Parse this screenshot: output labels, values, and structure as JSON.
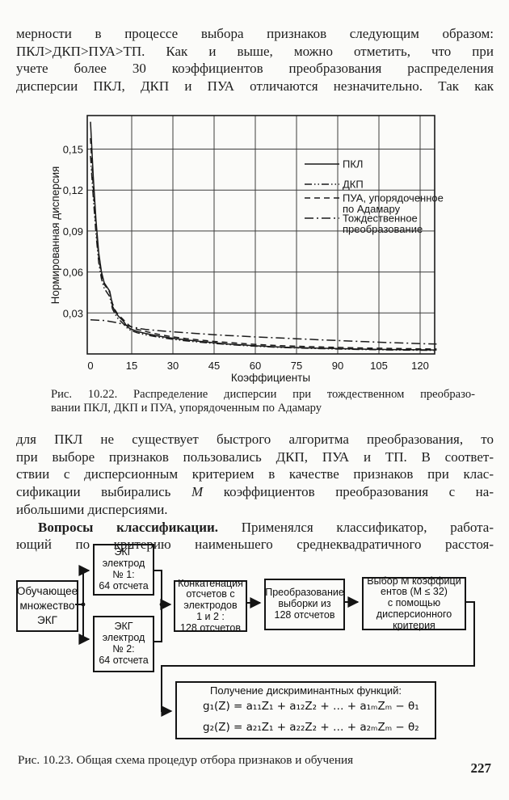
{
  "page": {
    "paragraph_top": {
      "line1": "мерности в процессе выбора признаков следующим образом:",
      "line2": "ПКЛ>ДКП>ПУА>ТП. Как и выше, можно отметить, что при",
      "line3": "учете более 30 коэффициентов преобразования распределения",
      "line4": "дисперсии ПКЛ, ДКП и ПУА отличаются незначительно. Так как"
    },
    "figure_22_caption": {
      "line1": "Рис. 10.22. Распределение дисперсии при тождественном преобразо-",
      "line2": "вании ПКЛ, ДКП и ПУА, упорядоченным по Адамару"
    },
    "paragraph_mid": {
      "line1": "для ПКЛ не существует быстрого алгоритма преобразования, то",
      "line2": "при выборе признаков пользовались ДКП, ПУА и ТП. В соответ-",
      "line3": "ствии с дисперсионным критерием в качестве признаков при клас-",
      "line4_a": "сификации выбирались",
      "line4_m": "М",
      "line4_b": "коэффициентов преобразования с на-",
      "line5": "ибольшими дисперсиями.",
      "line6_bold": "Вопросы классификации.",
      "line6_rest": "Применялся классификатор, работа-",
      "line7": "ющий по критерию наименьшего среднеквадратичного расстоя-"
    },
    "figure_23_caption": "Рис. 10.23. Общая схема процедур отбора признаков и обучения",
    "page_number": "227"
  },
  "chart_data": {
    "type": "line",
    "title": "",
    "xlabel": "Коэффициенты",
    "ylabel": "Нормированная дисперсия",
    "xlim": [
      0,
      126
    ],
    "ylim": [
      0,
      0.1745
    ],
    "xticks": [
      0,
      15,
      30,
      45,
      60,
      75,
      90,
      105,
      120
    ],
    "yticks": [
      0.03,
      0.06,
      0.09,
      0.12,
      0.15
    ],
    "ytick_labels": [
      "0,03",
      "0,06",
      "0,09",
      "0,12",
      "0,15"
    ],
    "grid": true,
    "legend_position": "upper right",
    "legend_labels": [
      [
        "ПКЛ"
      ],
      [
        "ДКП"
      ],
      [
        "ПУА, упорядоченное",
        "по Адамару"
      ],
      [
        "Тождественное",
        "преобразование"
      ]
    ],
    "series": [
      {
        "name": "ПКЛ",
        "key": "pkl",
        "style": "solid",
        "x": [
          0,
          1,
          2,
          3,
          4,
          5,
          6,
          7,
          7.5,
          8,
          9,
          10,
          11,
          12,
          13,
          14,
          15,
          17,
          20,
          25,
          30,
          35,
          40,
          45,
          50,
          55,
          60,
          70,
          80,
          90,
          100,
          110,
          120,
          126
        ],
        "y": [
          0.17,
          0.13,
          0.098,
          0.074,
          0.06,
          0.052,
          0.049,
          0.046,
          0.041,
          0.035,
          0.031,
          0.028,
          0.026,
          0.024,
          0.021,
          0.019,
          0.018,
          0.0165,
          0.015,
          0.013,
          0.0115,
          0.0102,
          0.0092,
          0.0082,
          0.0073,
          0.0066,
          0.006,
          0.005,
          0.0044,
          0.0039,
          0.0035,
          0.0032,
          0.003,
          0.0029
        ]
      },
      {
        "name": "ДКП",
        "key": "dkp",
        "style": "dash-dot-dot",
        "x": [
          0,
          1,
          2,
          3,
          4,
          5,
          6,
          7,
          8,
          9,
          10,
          11,
          12,
          13,
          14,
          15,
          17,
          20,
          25,
          30,
          35,
          40,
          45,
          50,
          55,
          60,
          70,
          80,
          90,
          100,
          110,
          120,
          126
        ],
        "y": [
          0.145,
          0.115,
          0.088,
          0.067,
          0.055,
          0.048,
          0.045,
          0.042,
          0.033,
          0.029,
          0.026,
          0.024,
          0.022,
          0.0195,
          0.018,
          0.017,
          0.0155,
          0.014,
          0.0122,
          0.0107,
          0.0095,
          0.0086,
          0.0077,
          0.0069,
          0.0062,
          0.0057,
          0.0047,
          0.0041,
          0.0036,
          0.0032,
          0.0029,
          0.0027,
          0.0026
        ]
      },
      {
        "name": "ПУА, упорядоченное по Адамару",
        "key": "pua",
        "style": "dashed",
        "x": [
          0,
          1,
          2,
          3,
          4,
          5,
          6,
          7,
          8,
          9,
          10,
          12,
          14,
          15,
          17,
          20,
          25,
          30,
          35,
          40,
          45,
          50,
          55,
          60,
          70,
          80,
          90,
          100,
          110,
          120,
          126
        ],
        "y": [
          0.158,
          0.122,
          0.093,
          0.071,
          0.058,
          0.051,
          0.048,
          0.045,
          0.037,
          0.032,
          0.029,
          0.025,
          0.021,
          0.0195,
          0.018,
          0.0165,
          0.0142,
          0.0125,
          0.0112,
          0.0102,
          0.0092,
          0.0084,
          0.0077,
          0.007,
          0.006,
          0.0053,
          0.0048,
          0.0043,
          0.004,
          0.0037,
          0.0036
        ]
      },
      {
        "name": "Тождественное преобразование",
        "key": "tp",
        "style": "dash-dot",
        "x": [
          0,
          5,
          10,
          13,
          15,
          18,
          20,
          25,
          30,
          35,
          40,
          45,
          50,
          55,
          60,
          65,
          70,
          75,
          80,
          85,
          90,
          95,
          100,
          105,
          110,
          115,
          120,
          126
        ],
        "y": [
          0.025,
          0.0245,
          0.0228,
          0.021,
          0.0198,
          0.0186,
          0.018,
          0.017,
          0.0162,
          0.0155,
          0.0148,
          0.0141,
          0.0135,
          0.013,
          0.0125,
          0.012,
          0.0116,
          0.0111,
          0.0107,
          0.0102,
          0.0098,
          0.0094,
          0.009,
          0.0086,
          0.0082,
          0.0079,
          0.0076,
          0.0072
        ]
      }
    ]
  },
  "diagram": {
    "box_training": {
      "l1": "Обучающее",
      "l2": "множество",
      "l3": "ЭКГ"
    },
    "box_electrode1": {
      "l1": "ЭКГ",
      "l2": "электрод",
      "l3": "№ 1:",
      "l4": "64 отсчета"
    },
    "box_electrode2": {
      "l1": "ЭКГ",
      "l2": "электрод",
      "l3": "№ 2:",
      "l4": "64 отсчета"
    },
    "box_concat": {
      "l1": "Конкатенация",
      "l2": "отсчетов с",
      "l3": "электродов",
      "l4": "1 и 2 :",
      "l5": "128 отсчетов"
    },
    "box_transform": {
      "l1": "Преобразование",
      "l2": "выборки из",
      "l3": "128 отсчетов"
    },
    "box_select": {
      "l1": "Выбор М коэффици",
      "l2": "ентов (М ≤ 32)",
      "l3": "с помощью",
      "l4": "дисперсионного",
      "l5": "критерия"
    },
    "box_discriminant": {
      "title": "Получение дискриминантных функций:",
      "formula1": "g₁(Z) = a₁₁Z₁ + a₁₂Z₂ + … + a₁ₘZₘ − θ₁",
      "formula2": "g₂(Z) = a₂₁Z₁ + a₂₂Z₂ + … + a₂ₘZₘ − θ₂"
    }
  }
}
